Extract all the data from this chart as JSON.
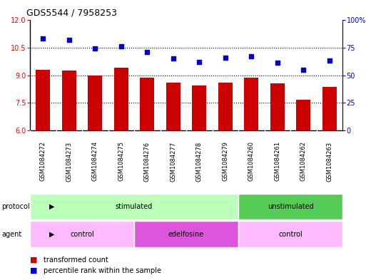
{
  "title": "GDS5544 / 7958253",
  "samples": [
    "GSM1084272",
    "GSM1084273",
    "GSM1084274",
    "GSM1084275",
    "GSM1084276",
    "GSM1084277",
    "GSM1084278",
    "GSM1084279",
    "GSM1084260",
    "GSM1084261",
    "GSM1084262",
    "GSM1084263"
  ],
  "bar_values": [
    9.3,
    9.25,
    9.0,
    9.4,
    8.85,
    8.6,
    8.45,
    8.6,
    8.85,
    8.55,
    7.65,
    8.35
  ],
  "scatter_values": [
    83,
    82,
    74,
    76,
    71,
    65,
    62,
    66,
    67,
    61,
    55,
    63
  ],
  "ylim_left": [
    6,
    12
  ],
  "ylim_right": [
    0,
    100
  ],
  "yticks_left": [
    6,
    7.5,
    9,
    10.5,
    12
  ],
  "yticks_right": [
    0,
    25,
    50,
    75,
    100
  ],
  "bar_color": "#cc0000",
  "scatter_color": "#0000cc",
  "protocol_groups": [
    {
      "label": "stimulated",
      "start": 0,
      "end": 8,
      "color": "#bbffbb"
    },
    {
      "label": "unstimulated",
      "start": 8,
      "end": 12,
      "color": "#55cc55"
    }
  ],
  "agent_groups": [
    {
      "label": "control",
      "start": 0,
      "end": 4,
      "color": "#ffbbff"
    },
    {
      "label": "edelfosine",
      "start": 4,
      "end": 8,
      "color": "#dd55dd"
    },
    {
      "label": "control",
      "start": 8,
      "end": 12,
      "color": "#ffbbff"
    }
  ],
  "legend_bar_label": "transformed count",
  "legend_scatter_label": "percentile rank within the sample",
  "protocol_label": "protocol",
  "agent_label": "agent",
  "background_color": "#ffffff",
  "plot_bg_color": "#ffffff",
  "gridline_color": "#000000",
  "bar_width": 0.55,
  "label_row_color": "#cccccc",
  "title_fontsize": 9,
  "tick_fontsize": 7,
  "label_fontsize": 6,
  "row_fontsize": 7
}
